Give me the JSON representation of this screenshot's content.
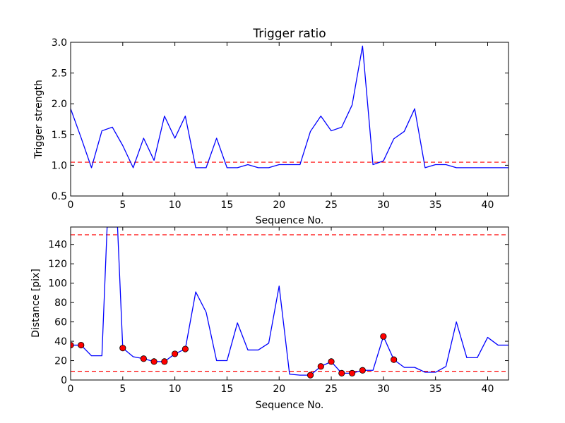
{
  "chart_data": [
    {
      "type": "line",
      "title": "Trigger ratio",
      "xlabel": "Sequence No.",
      "ylabel": "Trigger strength",
      "xlim": [
        0,
        42
      ],
      "ylim": [
        0.5,
        3.0
      ],
      "grid": false,
      "xticks": [
        0,
        5,
        10,
        15,
        20,
        25,
        30,
        35,
        40
      ],
      "xtick_labels": [
        "0",
        "5",
        "10",
        "15",
        "20",
        "25",
        "30",
        "35",
        "40"
      ],
      "yticks": [
        0.5,
        1.0,
        1.5,
        2.0,
        2.5,
        3.0
      ],
      "ytick_labels": [
        "0.5",
        "1.0",
        "1.5",
        "2.0",
        "2.5",
        "3.0"
      ],
      "series": [
        {
          "color": "#0000ff",
          "style": "line",
          "x": [
            0,
            1,
            2,
            3,
            4,
            5,
            6,
            7,
            8,
            9,
            10,
            11,
            12,
            13,
            14,
            15,
            16,
            17,
            18,
            19,
            20,
            21,
            22,
            23,
            24,
            25,
            26,
            27,
            28,
            29,
            30,
            31,
            32,
            33,
            34,
            35,
            36,
            37,
            38,
            39,
            40,
            41,
            42
          ],
          "values": [
            1.92,
            1.45,
            0.96,
            1.56,
            1.62,
            1.32,
            0.96,
            1.44,
            1.08,
            1.8,
            1.44,
            1.8,
            0.96,
            0.96,
            1.44,
            0.96,
            0.96,
            1.01,
            0.96,
            0.96,
            1.01,
            1.01,
            1.01,
            1.55,
            1.8,
            1.56,
            1.62,
            1.98,
            2.94,
            1.01,
            1.07,
            1.43,
            1.55,
            1.92,
            0.96,
            1.01,
            1.01,
            0.96,
            0.96,
            0.96,
            0.96,
            0.96,
            0.96
          ]
        }
      ],
      "reference_lines": [
        {
          "y": 1.05,
          "color": "#ff0000",
          "style": "dashed"
        }
      ]
    },
    {
      "type": "line",
      "title": "",
      "xlabel": "Sequence No.",
      "ylabel": "Distance [pix]",
      "xlim": [
        0,
        42
      ],
      "ylim": [
        0,
        158
      ],
      "grid": false,
      "xticks": [
        0,
        5,
        10,
        15,
        20,
        25,
        30,
        35,
        40
      ],
      "xtick_labels": [
        "0",
        "5",
        "10",
        "15",
        "20",
        "25",
        "30",
        "35",
        "40"
      ],
      "yticks": [
        0,
        20,
        40,
        60,
        80,
        100,
        120,
        140
      ],
      "ytick_labels": [
        "0",
        "20",
        "40",
        "60",
        "80",
        "100",
        "120",
        "140"
      ],
      "series": [
        {
          "color": "#0000ff",
          "style": "line",
          "x": [
            0,
            1,
            2,
            3,
            3.5,
            4.5,
            5,
            6,
            7,
            8,
            9,
            10,
            11,
            12,
            13,
            14,
            15,
            16,
            17,
            18,
            19,
            20,
            21,
            22,
            23,
            24,
            25,
            26,
            27,
            28,
            29,
            30,
            31,
            32,
            33,
            34,
            35,
            36,
            37,
            38,
            39,
            40,
            41,
            42
          ],
          "values": [
            36,
            36,
            25,
            25,
            158,
            158,
            33,
            24,
            22,
            19,
            19,
            27,
            32,
            91,
            70,
            20,
            20,
            59,
            31,
            31,
            38,
            97,
            6,
            5,
            5,
            14,
            19,
            7,
            7,
            10,
            10,
            45,
            21,
            13,
            13,
            8,
            8,
            14,
            60,
            23,
            23,
            44,
            36,
            36
          ]
        },
        {
          "color": "#ff0000",
          "style": "markers",
          "x": [
            0,
            1,
            5,
            7,
            8,
            9,
            10,
            11,
            23,
            24,
            25,
            26,
            27,
            28,
            30,
            31
          ],
          "values": [
            36,
            36,
            33,
            22,
            19,
            19,
            27,
            32,
            5,
            14,
            19,
            7,
            7,
            10,
            45,
            21
          ]
        }
      ],
      "reference_lines": [
        {
          "y": 150,
          "color": "#ff0000",
          "style": "dashed"
        },
        {
          "y": 9,
          "color": "#ff0000",
          "style": "dashed"
        }
      ]
    }
  ]
}
